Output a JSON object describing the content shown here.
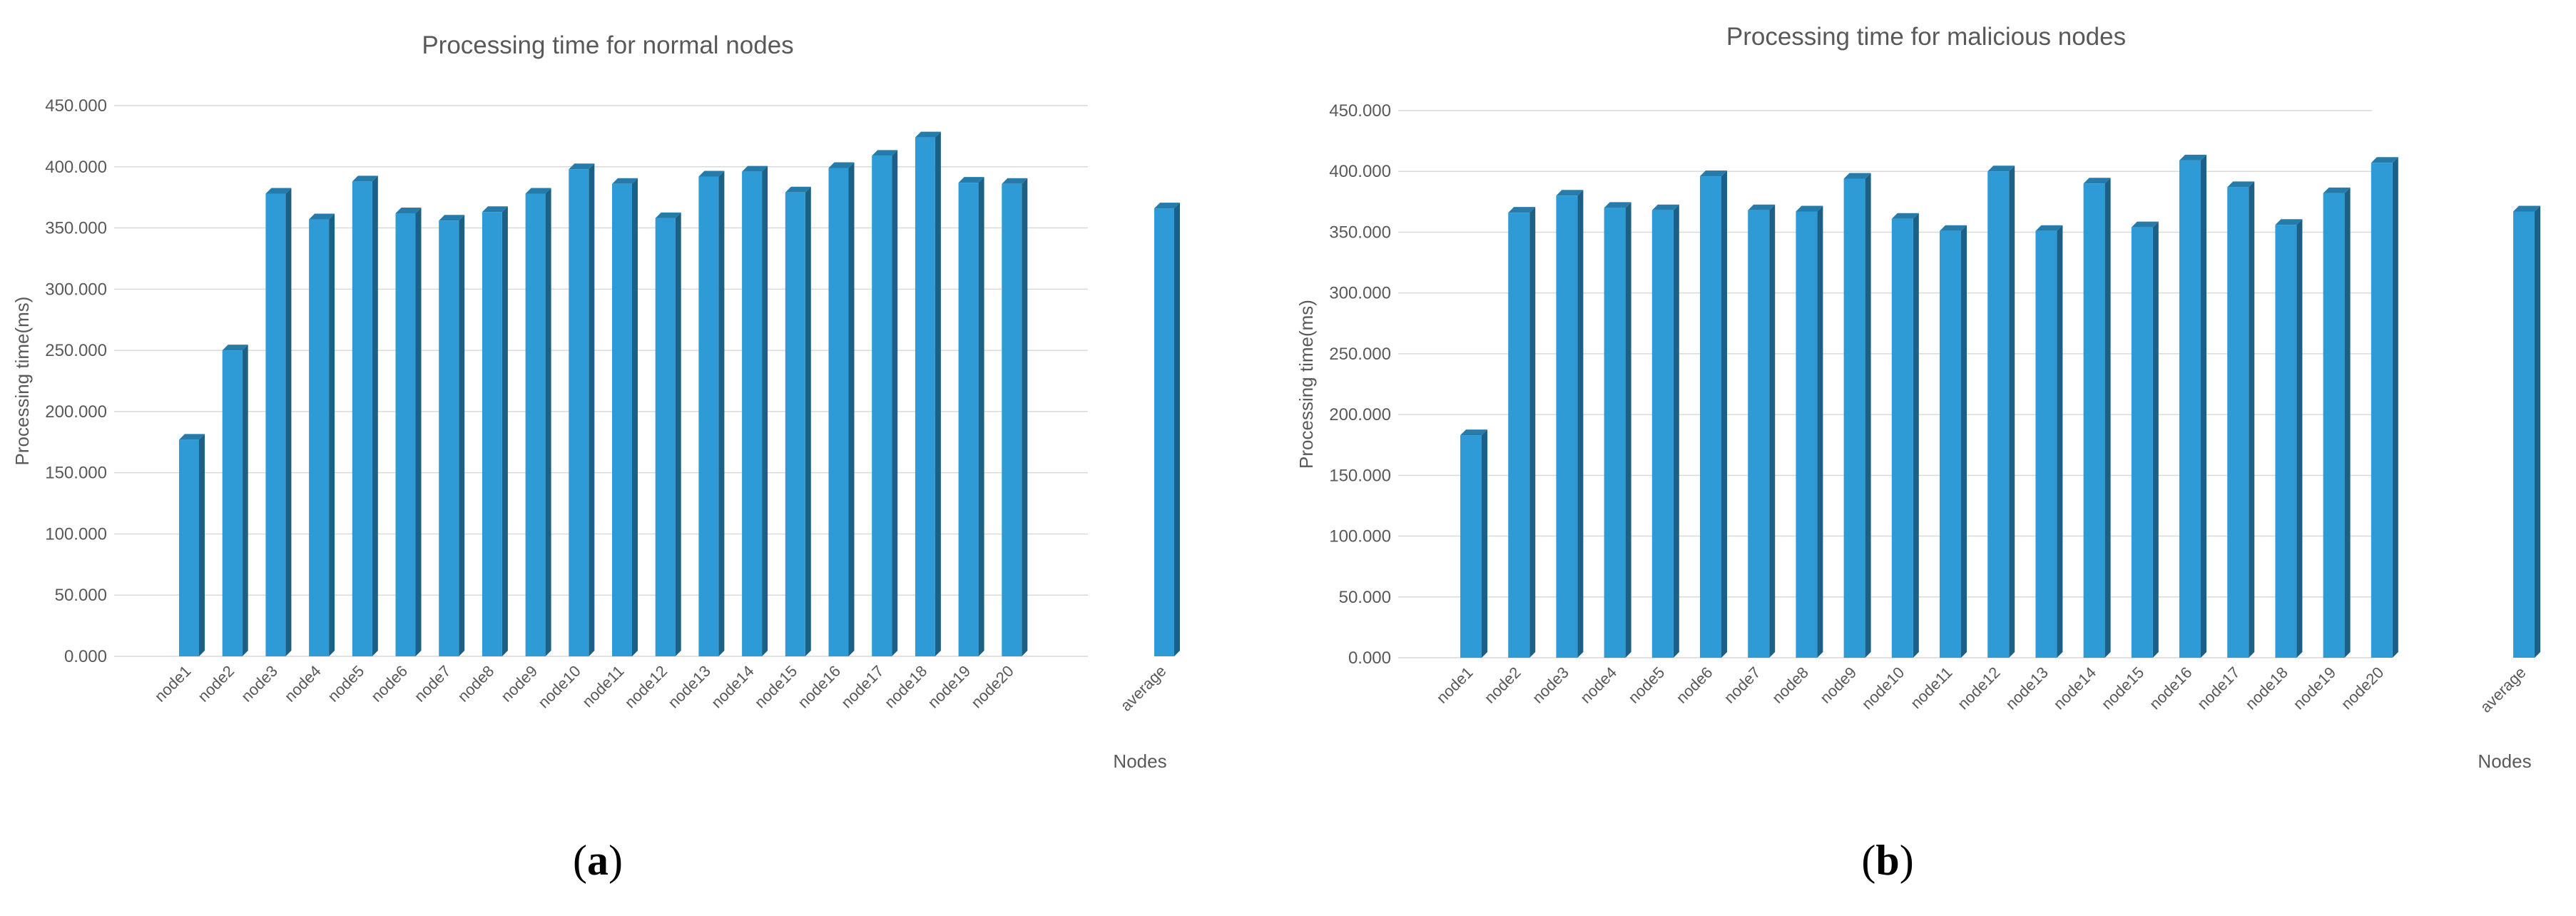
{
  "chart_data": [
    {
      "type": "bar",
      "title": "Processing time for normal nodes",
      "xlabel": "Nodes",
      "ylabel": "Processing time(ms)",
      "ylim": [
        0,
        450
      ],
      "yticks": [
        "0.000",
        "50.000",
        "100.000",
        "150.000",
        "200.000",
        "250.000",
        "300.000",
        "350.000",
        "400.000",
        "450.000"
      ],
      "categories": [
        "node1",
        "node2",
        "node3",
        "node4",
        "node5",
        "node6",
        "node7",
        "node8",
        "node9",
        "node10",
        "node11",
        "node12",
        "node13",
        "node14",
        "node15",
        "node16",
        "node17",
        "node18",
        "node19",
        "node20",
        "average"
      ],
      "values": [
        177,
        250,
        378,
        357,
        388,
        362,
        356,
        363,
        378,
        398,
        386,
        358,
        392,
        396,
        379,
        399,
        409,
        424,
        387,
        386,
        366
      ],
      "caption_letter": "a",
      "bar_color": "#2e9bd6",
      "grid": true
    },
    {
      "type": "bar",
      "title": "Processing time for malicious nodes",
      "xlabel": "Nodes",
      "ylabel": "Processing time(ms)",
      "ylim": [
        0,
        450
      ],
      "yticks": [
        "0.000",
        "50.000",
        "100.000",
        "150.000",
        "200.000",
        "250.000",
        "300.000",
        "350.000",
        "400.000",
        "450.000"
      ],
      "categories": [
        "node1",
        "node2",
        "node3",
        "node4",
        "node5",
        "node6",
        "node7",
        "node8",
        "node9",
        "node10",
        "node11",
        "node12",
        "node13",
        "node14",
        "node15",
        "node16",
        "node17",
        "node18",
        "node19",
        "node20",
        "average"
      ],
      "values": [
        183,
        366,
        380,
        370,
        368,
        396,
        368,
        367,
        394,
        361,
        351,
        400,
        351,
        390,
        354,
        409,
        387,
        356,
        382,
        407,
        367
      ],
      "caption_letter": "b",
      "bar_color": "#2e9bd6",
      "grid": true
    }
  ]
}
